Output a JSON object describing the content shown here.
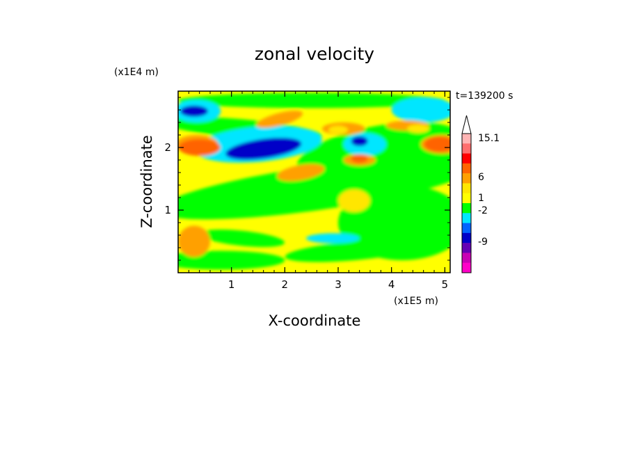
{
  "chart_data": {
    "type": "heatmap",
    "title": "zonal velocity",
    "xlabel": "X-coordinate",
    "ylabel": "Z-coordinate",
    "x_unit": "(x1E5 m)",
    "y_unit": "(x1E4 m)",
    "time_label": "t=139200 s",
    "xlim": [
      0,
      5.1
    ],
    "ylim": [
      0,
      2.9
    ],
    "x_ticks": [
      "1",
      "2",
      "3",
      "4",
      "5"
    ],
    "y_ticks": [
      "1",
      "2"
    ],
    "colorbar": {
      "labels": [
        "15.1",
        "6",
        "1",
        "-2",
        "-9"
      ],
      "colors": [
        "#ffb4b4",
        "#ff6e6e",
        "#ff0000",
        "#ff6400",
        "#ffa000",
        "#ffe600",
        "#ffff00",
        "#00ff00",
        "#00e6ff",
        "#0064ff",
        "#0000c8",
        "#6400b4",
        "#c800b4",
        "#ff00c8"
      ]
    },
    "features": [
      {
        "x": 1.6,
        "z": 1.98,
        "value": -9
      },
      {
        "x": 0.3,
        "z": 2.58,
        "value": -9
      },
      {
        "x": 3.4,
        "z": 2.1,
        "value": -9
      },
      {
        "x": 0.4,
        "z": 2.0,
        "value": 6
      },
      {
        "x": 4.9,
        "z": 2.05,
        "value": 6
      },
      {
        "x": 3.4,
        "z": 1.82,
        "value": 6
      },
      {
        "x": 2.0,
        "z": 2.45,
        "value": 3
      },
      {
        "x": 3.0,
        "z": 2.28,
        "value": 2
      },
      {
        "x": 4.5,
        "z": 2.3,
        "value": 1
      }
    ]
  }
}
